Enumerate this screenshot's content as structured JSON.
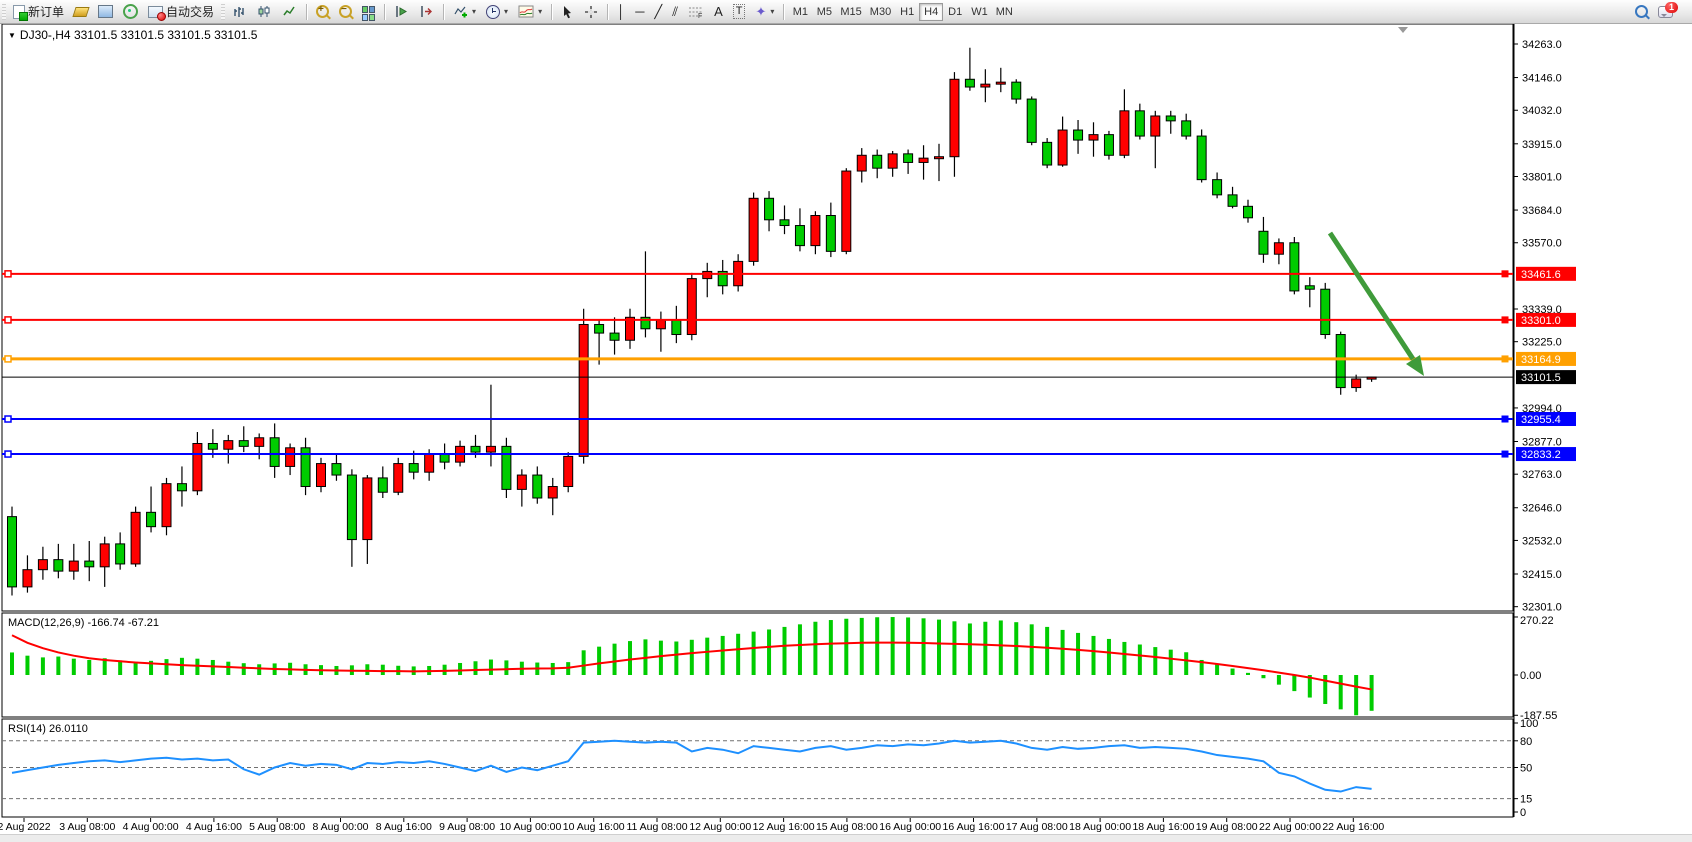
{
  "toolbar": {
    "new_order_label": "新订单",
    "autotrading_label": "自动交易",
    "text_tool": "A",
    "label_tool": "T",
    "fibo_tool": "F",
    "shapes_tool": "✦",
    "cursor_tool": "➢",
    "crosshair_tool": "＋",
    "vline_tool": "│",
    "hline_tool": "─",
    "tline_tool": "╱",
    "channel_tool": "⫽",
    "dropdown_glyph": "▾",
    "timeframes": [
      "M1",
      "M5",
      "M15",
      "M30",
      "H1",
      "H4",
      "D1",
      "W1",
      "MN"
    ],
    "active_timeframe": "H4",
    "chat_badge": "1"
  },
  "chart": {
    "collapse_glyph": "▼",
    "title": "DJ30-,H4  33101.5 33101.5 33101.5 33101.5",
    "symbol": "DJ30-",
    "period": "H4",
    "ohlc_display": [
      "33101.5",
      "33101.5",
      "33101.5",
      "33101.5"
    ]
  },
  "indicators": {
    "macd_label": "MACD(12,26,9)",
    "macd_values": "-166.74 -67.21",
    "rsi_label": "RSI(14)",
    "rsi_value": "26.0110"
  },
  "chart_data": {
    "type": "candlestick",
    "symbol": "DJ30-",
    "timeframe": "H4",
    "up_color": "#ff0000",
    "down_color": "#00cc00",
    "x_axis_labels": [
      "2 Aug 2022",
      "3 Aug 08:00",
      "4 Aug 00:00",
      "4 Aug 16:00",
      "5 Aug 08:00",
      "8 Aug 00:00",
      "8 Aug 16:00",
      "9 Aug 08:00",
      "10 Aug 00:00",
      "10 Aug 16:00",
      "11 Aug 08:00",
      "12 Aug 00:00",
      "12 Aug 16:00",
      "15 Aug 08:00",
      "16 Aug 00:00",
      "16 Aug 16:00",
      "17 Aug 08:00",
      "18 Aug 00:00",
      "18 Aug 16:00",
      "19 Aug 08:00",
      "22 Aug 00:00",
      "22 Aug 16:00"
    ],
    "y_axis_ticks": [
      34263.0,
      34146.0,
      34032.0,
      33915.0,
      33801.0,
      33684.0,
      33570.0,
      33339.0,
      33225.0,
      32994.0,
      32877.0,
      32763.0,
      32646.0,
      32532.0,
      32415.0,
      32301.0
    ],
    "horizontal_lines": [
      {
        "price": 33461.6,
        "label": "33461.6",
        "color": "#ff0000",
        "width": 2,
        "handles": true
      },
      {
        "price": 33301.0,
        "label": "33301.0",
        "color": "#ff0000",
        "width": 2,
        "handles": true
      },
      {
        "price": 33164.9,
        "label": "33164.9",
        "color": "#ffa000",
        "width": 3,
        "handles": true
      },
      {
        "price": 33101.5,
        "label": "33101.5",
        "color": "#000000",
        "width": 1,
        "handles": false
      },
      {
        "price": 32955.4,
        "label": "32955.4",
        "color": "#0000ff",
        "width": 2,
        "handles": true
      },
      {
        "price": 32833.2,
        "label": "32833.2",
        "color": "#0000ff",
        "width": 2,
        "handles": true
      }
    ],
    "arrow_annotation": {
      "from": [
        1330,
        233
      ],
      "to": [
        1424,
        376
      ],
      "color": "#3f9b3a"
    },
    "ohlc": [
      [
        32615,
        32650,
        32340,
        32370
      ],
      [
        32370,
        32480,
        32350,
        32430
      ],
      [
        32430,
        32510,
        32395,
        32465
      ],
      [
        32465,
        32520,
        32400,
        32425
      ],
      [
        32425,
        32520,
        32395,
        32460
      ],
      [
        32460,
        32530,
        32390,
        32440
      ],
      [
        32440,
        32545,
        32370,
        32520
      ],
      [
        32520,
        32560,
        32430,
        32450
      ],
      [
        32450,
        32650,
        32440,
        32630
      ],
      [
        32630,
        32720,
        32560,
        32580
      ],
      [
        32580,
        32750,
        32550,
        32730
      ],
      [
        32730,
        32790,
        32650,
        32705
      ],
      [
        32705,
        32910,
        32690,
        32870
      ],
      [
        32870,
        32920,
        32820,
        32850
      ],
      [
        32850,
        32900,
        32800,
        32880
      ],
      [
        32880,
        32930,
        32840,
        32860
      ],
      [
        32860,
        32905,
        32815,
        32890
      ],
      [
        32890,
        32940,
        32750,
        32790
      ],
      [
        32790,
        32870,
        32760,
        32855
      ],
      [
        32855,
        32890,
        32690,
        32720
      ],
      [
        32720,
        32820,
        32700,
        32800
      ],
      [
        32800,
        32830,
        32740,
        32760
      ],
      [
        32760,
        32780,
        32440,
        32535
      ],
      [
        32535,
        32760,
        32450,
        32750
      ],
      [
        32750,
        32790,
        32680,
        32700
      ],
      [
        32700,
        32820,
        32690,
        32800
      ],
      [
        32800,
        32845,
        32745,
        32770
      ],
      [
        32770,
        32850,
        32740,
        32835
      ],
      [
        32835,
        32870,
        32780,
        32805
      ],
      [
        32805,
        32880,
        32790,
        32860
      ],
      [
        32860,
        32900,
        32820,
        32840
      ],
      [
        32840,
        33075,
        32790,
        32860
      ],
      [
        32860,
        32890,
        32680,
        32710
      ],
      [
        32710,
        32780,
        32650,
        32760
      ],
      [
        32760,
        32790,
        32660,
        32680
      ],
      [
        32680,
        32750,
        32620,
        32720
      ],
      [
        32720,
        32840,
        32700,
        32825
      ],
      [
        32825,
        33340,
        32800,
        33285
      ],
      [
        33285,
        33300,
        33145,
        33255
      ],
      [
        33255,
        33310,
        33180,
        33230
      ],
      [
        33230,
        33340,
        33200,
        33310
      ],
      [
        33310,
        33540,
        33240,
        33270
      ],
      [
        33270,
        33330,
        33190,
        33300
      ],
      [
        33300,
        33350,
        33220,
        33250
      ],
      [
        33250,
        33465,
        33230,
        33445
      ],
      [
        33445,
        33500,
        33380,
        33470
      ],
      [
        33470,
        33510,
        33390,
        33420
      ],
      [
        33420,
        33530,
        33400,
        33505
      ],
      [
        33505,
        33745,
        33490,
        33725
      ],
      [
        33725,
        33750,
        33610,
        33650
      ],
      [
        33650,
        33700,
        33600,
        33630
      ],
      [
        33630,
        33690,
        33540,
        33560
      ],
      [
        33560,
        33680,
        33530,
        33665
      ],
      [
        33665,
        33710,
        33520,
        33540
      ],
      [
        33540,
        33830,
        33530,
        33820
      ],
      [
        33820,
        33900,
        33780,
        33875
      ],
      [
        33875,
        33895,
        33795,
        33830
      ],
      [
        33830,
        33890,
        33800,
        33880
      ],
      [
        33880,
        33895,
        33810,
        33850
      ],
      [
        33850,
        33910,
        33790,
        33865
      ],
      [
        33865,
        33915,
        33785,
        33870
      ],
      [
        33870,
        34165,
        33800,
        34140
      ],
      [
        34140,
        34250,
        34100,
        34113
      ],
      [
        34113,
        34175,
        34060,
        34123
      ],
      [
        34123,
        34180,
        34095,
        34130
      ],
      [
        34130,
        34140,
        34055,
        34071
      ],
      [
        34071,
        34080,
        33910,
        33920
      ],
      [
        33920,
        33935,
        33830,
        33841
      ],
      [
        33841,
        34010,
        33835,
        33963
      ],
      [
        33963,
        33998,
        33880,
        33928
      ],
      [
        33928,
        33990,
        33870,
        33947
      ],
      [
        33947,
        33960,
        33860,
        33875
      ],
      [
        33875,
        34105,
        33865,
        34030
      ],
      [
        34030,
        34055,
        33930,
        33942
      ],
      [
        33942,
        34030,
        33830,
        34012
      ],
      [
        34012,
        34030,
        33950,
        33995
      ],
      [
        33995,
        34020,
        33930,
        33942
      ],
      [
        33942,
        33965,
        33780,
        33790
      ],
      [
        33790,
        33815,
        33725,
        33737
      ],
      [
        33737,
        33765,
        33690,
        33697
      ],
      [
        33697,
        33720,
        33640,
        33657
      ],
      [
        33610,
        33660,
        33500,
        33530
      ],
      [
        33530,
        33585,
        33495,
        33570
      ],
      [
        33570,
        33590,
        33390,
        33402
      ],
      [
        33420,
        33450,
        33345,
        33408
      ],
      [
        33408,
        33430,
        33235,
        33250
      ],
      [
        33250,
        33260,
        33040,
        33065
      ],
      [
        33065,
        33110,
        33050,
        33095
      ],
      [
        33101.5,
        33103,
        33085,
        33101.5
      ]
    ],
    "macd": {
      "params": "12,26,9",
      "scale_ticks": [
        270.22,
        0.0,
        -187.55
      ],
      "current_main": -166.74,
      "current_signal": -67.21,
      "histogram": [
        105,
        90,
        82,
        86,
        76,
        70,
        78,
        68,
        62,
        66,
        74,
        80,
        76,
        70,
        62,
        55,
        50,
        54,
        57,
        50,
        46,
        42,
        45,
        50,
        48,
        43,
        40,
        42,
        48,
        56,
        64,
        72,
        68,
        62,
        58,
        56,
        60,
        115,
        132,
        146,
        158,
        166,
        160,
        156,
        164,
        174,
        182,
        192,
        202,
        212,
        224,
        236,
        248,
        256,
        262,
        266,
        269,
        270,
        268,
        264,
        258,
        250,
        240,
        248,
        254,
        246,
        236,
        224,
        210,
        196,
        182,
        168,
        154,
        142,
        130,
        118,
        106,
        70,
        50,
        30,
        10,
        -15,
        -45,
        -75,
        -105,
        -135,
        -160,
        -187.55,
        -166.74
      ],
      "signal": [
        185,
        150,
        125,
        105,
        90,
        78,
        70,
        64,
        58,
        54,
        50,
        46,
        43,
        40,
        37,
        34,
        31,
        28,
        26,
        24,
        22,
        21,
        20,
        19,
        18,
        18,
        17,
        18,
        19,
        21,
        23,
        25,
        27,
        29,
        30,
        31,
        34,
        44,
        54,
        63,
        72,
        80,
        88,
        95,
        102,
        108,
        114,
        120,
        126,
        131,
        136,
        140,
        143,
        146,
        148,
        150,
        151,
        151,
        150,
        149,
        147,
        145,
        143,
        141,
        138,
        135,
        131,
        127,
        122,
        117,
        111,
        105,
        98,
        91,
        84,
        76,
        68,
        60,
        51,
        42,
        32,
        22,
        11,
        0,
        -12,
        -26,
        -40,
        -54,
        -67.21
      ]
    },
    "rsi": {
      "period": 14,
      "levels": [
        80,
        50,
        15
      ],
      "scale_ticks": [
        100,
        80,
        50,
        15,
        0
      ],
      "current": 26.011,
      "values": [
        44,
        47,
        50,
        53,
        55,
        57,
        58,
        56,
        58,
        60,
        61,
        59,
        60,
        58,
        59,
        48,
        42,
        50,
        55,
        52,
        54,
        53,
        48,
        55,
        54,
        56,
        55,
        57,
        54,
        50,
        46,
        52,
        45,
        50,
        47,
        52,
        57,
        78,
        79,
        80,
        79,
        78,
        79,
        78,
        68,
        72,
        70,
        66,
        74,
        72,
        70,
        68,
        72,
        74,
        70,
        72,
        75,
        74,
        76,
        75,
        77,
        80,
        78,
        79,
        80,
        77,
        72,
        70,
        73,
        71,
        72,
        74,
        75,
        72,
        73,
        72,
        71,
        68,
        64,
        62,
        60,
        57,
        44,
        40,
        32,
        25,
        23,
        28,
        26.01
      ]
    }
  }
}
